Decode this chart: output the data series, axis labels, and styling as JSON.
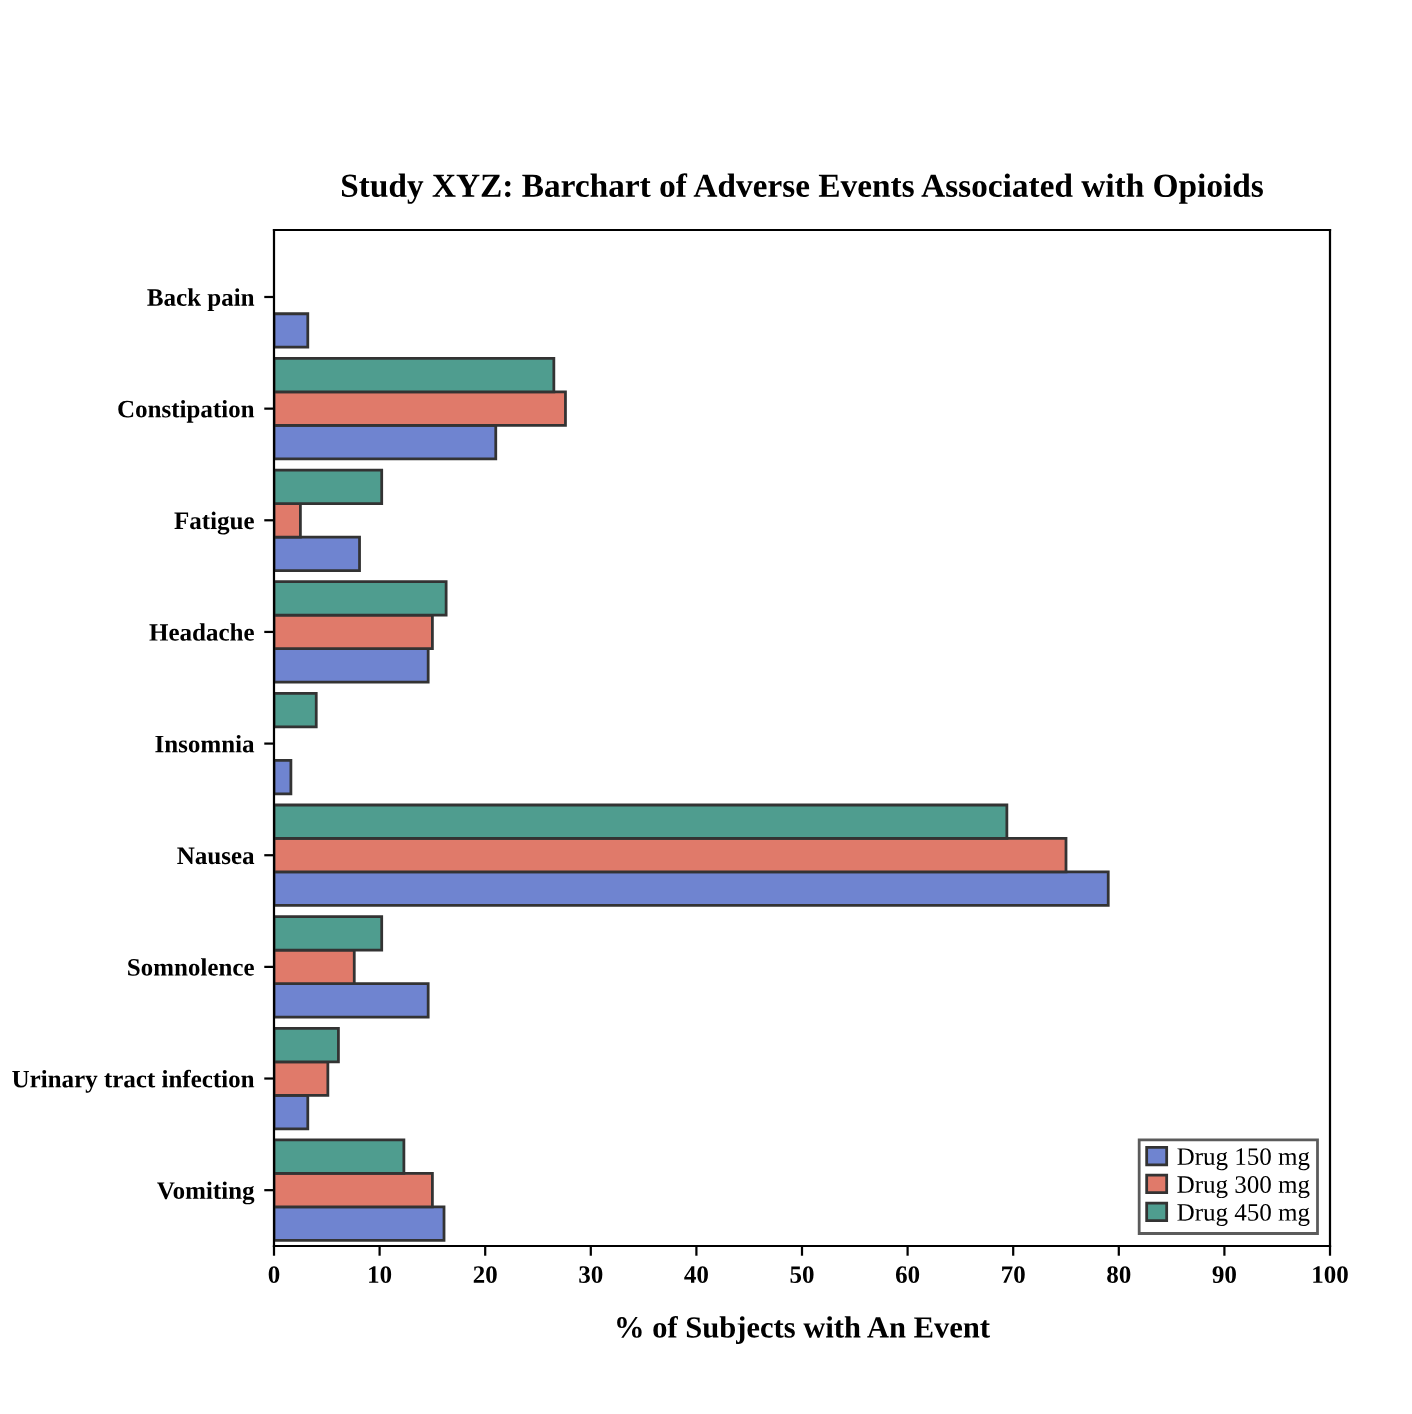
{
  "chart_data": {
    "type": "bar",
    "orientation": "horizontal",
    "title": "Study XYZ: Barchart of Adverse Events Associated with Opioids",
    "xlabel": "% of Subjects with An Event",
    "categories": [
      "Back pain",
      "Constipation",
      "Fatigue",
      "Headache",
      "Insomnia",
      "Nausea",
      "Somnolence",
      "Urinary tract infection",
      "Vomiting"
    ],
    "series": [
      {
        "name": "Drug 150 mg",
        "color": "#6f84d0",
        "values": [
          3.2,
          21.0,
          8.1,
          14.6,
          1.6,
          79.0,
          14.6,
          3.2,
          16.1
        ]
      },
      {
        "name": "Drug 300 mg",
        "color": "#e07a6a",
        "values": [
          null,
          27.6,
          2.5,
          15.0,
          null,
          75.0,
          7.6,
          5.1,
          15.0
        ]
      },
      {
        "name": "Drug 450 mg",
        "color": "#4f9d8f",
        "values": [
          null,
          26.5,
          10.2,
          16.3,
          4.0,
          69.4,
          10.2,
          6.1,
          12.3
        ]
      }
    ],
    "xlim": [
      0,
      100
    ],
    "xticks": [
      0,
      10,
      20,
      30,
      40,
      50,
      60,
      70,
      80,
      90,
      100
    ],
    "grid": false,
    "legend": "bottom right"
  }
}
